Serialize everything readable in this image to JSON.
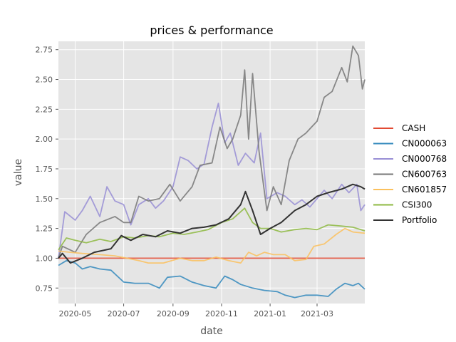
{
  "chart_data": {
    "type": "line",
    "title": "prices & performance",
    "xlabel": "date",
    "ylabel": "value",
    "x_axis_type": "date",
    "xlim": [
      "2020-04-10",
      "2021-04-30"
    ],
    "ylim": [
      0.62,
      2.82
    ],
    "x_ticks": [
      "2020-05",
      "2020-07",
      "2020-09",
      "2020-11",
      "2021-01",
      "2021-03"
    ],
    "x_tick_dates": [
      "2020-05-01",
      "2020-07-01",
      "2020-09-01",
      "2020-11-01",
      "2021-01-01",
      "2021-03-01"
    ],
    "y_ticks": [
      0.75,
      1.0,
      1.25,
      1.5,
      1.75,
      2.0,
      2.25,
      2.5,
      2.75
    ],
    "y_tick_labels": [
      "0.75",
      "1.00",
      "1.25",
      "1.50",
      "1.75",
      "2.00",
      "2.25",
      "2.50",
      "2.75"
    ],
    "grid": true,
    "background": "#E5E5E5",
    "legend_position": "outside-right",
    "series": [
      {
        "name": "CASH",
        "color": "#E24A33",
        "points": [
          [
            "2020-04-10",
            1.0
          ],
          [
            "2021-04-30",
            1.0
          ]
        ]
      },
      {
        "name": "CN000063",
        "color": "#348ABD",
        "points": [
          [
            "2020-04-10",
            0.94
          ],
          [
            "2020-04-20",
            0.98
          ],
          [
            "2020-05-01",
            0.96
          ],
          [
            "2020-05-10",
            0.91
          ],
          [
            "2020-05-20",
            0.93
          ],
          [
            "2020-06-01",
            0.91
          ],
          [
            "2020-06-15",
            0.9
          ],
          [
            "2020-07-01",
            0.8
          ],
          [
            "2020-07-15",
            0.79
          ],
          [
            "2020-08-01",
            0.79
          ],
          [
            "2020-08-15",
            0.75
          ],
          [
            "2020-08-25",
            0.84
          ],
          [
            "2020-09-10",
            0.85
          ],
          [
            "2020-09-25",
            0.8
          ],
          [
            "2020-10-10",
            0.77
          ],
          [
            "2020-10-25",
            0.75
          ],
          [
            "2020-11-05",
            0.85
          ],
          [
            "2020-11-15",
            0.82
          ],
          [
            "2020-11-25",
            0.78
          ],
          [
            "2020-12-10",
            0.75
          ],
          [
            "2020-12-25",
            0.73
          ],
          [
            "2021-01-10",
            0.72
          ],
          [
            "2021-01-20",
            0.69
          ],
          [
            "2021-02-01",
            0.67
          ],
          [
            "2021-02-15",
            0.69
          ],
          [
            "2021-03-01",
            0.69
          ],
          [
            "2021-03-15",
            0.68
          ],
          [
            "2021-03-25",
            0.74
          ],
          [
            "2021-04-05",
            0.79
          ],
          [
            "2021-04-15",
            0.77
          ],
          [
            "2021-04-22",
            0.79
          ],
          [
            "2021-04-30",
            0.74
          ]
        ]
      },
      {
        "name": "CN000768",
        "color": "#988ED5",
        "points": [
          [
            "2020-04-10",
            1.0
          ],
          [
            "2020-04-18",
            1.39
          ],
          [
            "2020-05-01",
            1.32
          ],
          [
            "2020-05-10",
            1.4
          ],
          [
            "2020-05-20",
            1.52
          ],
          [
            "2020-06-01",
            1.35
          ],
          [
            "2020-06-10",
            1.6
          ],
          [
            "2020-06-20",
            1.48
          ],
          [
            "2020-07-01",
            1.45
          ],
          [
            "2020-07-10",
            1.28
          ],
          [
            "2020-07-20",
            1.45
          ],
          [
            "2020-08-01",
            1.5
          ],
          [
            "2020-08-10",
            1.42
          ],
          [
            "2020-08-20",
            1.48
          ],
          [
            "2020-09-01",
            1.6
          ],
          [
            "2020-09-10",
            1.85
          ],
          [
            "2020-09-20",
            1.82
          ],
          [
            "2020-10-01",
            1.75
          ],
          [
            "2020-10-10",
            1.79
          ],
          [
            "2020-10-20",
            2.1
          ],
          [
            "2020-10-28",
            2.3
          ],
          [
            "2020-11-05",
            1.97
          ],
          [
            "2020-11-12",
            2.05
          ],
          [
            "2020-11-22",
            1.78
          ],
          [
            "2020-12-01",
            1.88
          ],
          [
            "2020-12-12",
            1.8
          ],
          [
            "2020-12-20",
            2.05
          ],
          [
            "2020-12-28",
            1.5
          ],
          [
            "2021-01-10",
            1.55
          ],
          [
            "2021-01-20",
            1.52
          ],
          [
            "2021-02-01",
            1.45
          ],
          [
            "2021-02-10",
            1.49
          ],
          [
            "2021-02-20",
            1.43
          ],
          [
            "2021-03-01",
            1.5
          ],
          [
            "2021-03-10",
            1.57
          ],
          [
            "2021-03-20",
            1.5
          ],
          [
            "2021-04-01",
            1.62
          ],
          [
            "2021-04-10",
            1.55
          ],
          [
            "2021-04-20",
            1.62
          ],
          [
            "2021-04-25",
            1.4
          ],
          [
            "2021-04-30",
            1.45
          ]
        ]
      },
      {
        "name": "CN600763",
        "color": "#777777",
        "points": [
          [
            "2020-04-10",
            1.0
          ],
          [
            "2020-04-15",
            1.1
          ],
          [
            "2020-05-01",
            1.05
          ],
          [
            "2020-05-15",
            1.2
          ],
          [
            "2020-06-01",
            1.3
          ],
          [
            "2020-06-20",
            1.35
          ],
          [
            "2020-07-01",
            1.3
          ],
          [
            "2020-07-10",
            1.3
          ],
          [
            "2020-07-20",
            1.52
          ],
          [
            "2020-08-01",
            1.48
          ],
          [
            "2020-08-15",
            1.5
          ],
          [
            "2020-08-28",
            1.62
          ],
          [
            "2020-09-10",
            1.48
          ],
          [
            "2020-09-25",
            1.6
          ],
          [
            "2020-10-05",
            1.78
          ],
          [
            "2020-10-20",
            1.8
          ],
          [
            "2020-10-30",
            2.1
          ],
          [
            "2020-11-08",
            1.92
          ],
          [
            "2020-11-15",
            2.0
          ],
          [
            "2020-11-25",
            2.2
          ],
          [
            "2020-11-30",
            2.58
          ],
          [
            "2020-12-05",
            2.0
          ],
          [
            "2020-12-10",
            2.55
          ],
          [
            "2020-12-18",
            1.9
          ],
          [
            "2020-12-28",
            1.4
          ],
          [
            "2021-01-05",
            1.6
          ],
          [
            "2021-01-15",
            1.45
          ],
          [
            "2021-01-25",
            1.82
          ],
          [
            "2021-02-05",
            2.0
          ],
          [
            "2021-02-15",
            2.05
          ],
          [
            "2021-02-22",
            2.1
          ],
          [
            "2021-03-01",
            2.15
          ],
          [
            "2021-03-10",
            2.35
          ],
          [
            "2021-03-20",
            2.4
          ],
          [
            "2021-04-01",
            2.6
          ],
          [
            "2021-04-08",
            2.48
          ],
          [
            "2021-04-15",
            2.78
          ],
          [
            "2021-04-22",
            2.7
          ],
          [
            "2021-04-27",
            2.42
          ],
          [
            "2021-04-30",
            2.5
          ]
        ]
      },
      {
        "name": "CN601857",
        "color": "#FBC15E",
        "points": [
          [
            "2020-04-10",
            1.06
          ],
          [
            "2020-04-25",
            1.05
          ],
          [
            "2020-05-10",
            1.04
          ],
          [
            "2020-06-01",
            1.03
          ],
          [
            "2020-06-20",
            1.02
          ],
          [
            "2020-07-05",
            1.0
          ],
          [
            "2020-07-20",
            0.98
          ],
          [
            "2020-08-01",
            0.96
          ],
          [
            "2020-08-20",
            0.96
          ],
          [
            "2020-09-10",
            1.0
          ],
          [
            "2020-09-25",
            0.98
          ],
          [
            "2020-10-10",
            0.98
          ],
          [
            "2020-10-25",
            1.01
          ],
          [
            "2020-11-10",
            0.98
          ],
          [
            "2020-11-25",
            0.96
          ],
          [
            "2020-12-05",
            1.05
          ],
          [
            "2020-12-15",
            1.02
          ],
          [
            "2020-12-25",
            1.05
          ],
          [
            "2021-01-05",
            1.03
          ],
          [
            "2021-01-20",
            1.03
          ],
          [
            "2021-02-01",
            0.98
          ],
          [
            "2021-02-15",
            0.99
          ],
          [
            "2021-02-25",
            1.1
          ],
          [
            "2021-03-10",
            1.12
          ],
          [
            "2021-03-25",
            1.2
          ],
          [
            "2021-04-05",
            1.25
          ],
          [
            "2021-04-15",
            1.22
          ],
          [
            "2021-04-30",
            1.21
          ]
        ]
      },
      {
        "name": "CSI300",
        "color": "#8EBA42",
        "points": [
          [
            "2020-04-10",
            1.07
          ],
          [
            "2020-04-20",
            1.17
          ],
          [
            "2020-05-01",
            1.15
          ],
          [
            "2020-05-15",
            1.13
          ],
          [
            "2020-06-01",
            1.16
          ],
          [
            "2020-06-15",
            1.14
          ],
          [
            "2020-07-01",
            1.18
          ],
          [
            "2020-07-15",
            1.17
          ],
          [
            "2020-08-01",
            1.19
          ],
          [
            "2020-08-15",
            1.18
          ],
          [
            "2020-09-01",
            1.21
          ],
          [
            "2020-09-15",
            1.2
          ],
          [
            "2020-10-01",
            1.22
          ],
          [
            "2020-10-15",
            1.24
          ],
          [
            "2020-11-01",
            1.3
          ],
          [
            "2020-11-15",
            1.33
          ],
          [
            "2020-11-30",
            1.42
          ],
          [
            "2020-12-10",
            1.3
          ],
          [
            "2020-12-20",
            1.25
          ],
          [
            "2021-01-01",
            1.25
          ],
          [
            "2021-01-15",
            1.22
          ],
          [
            "2021-02-01",
            1.24
          ],
          [
            "2021-02-15",
            1.25
          ],
          [
            "2021-03-01",
            1.24
          ],
          [
            "2021-03-15",
            1.28
          ],
          [
            "2021-04-01",
            1.27
          ],
          [
            "2021-04-15",
            1.26
          ],
          [
            "2021-04-30",
            1.23
          ]
        ]
      },
      {
        "name": "Portfolio",
        "color": "#333333",
        "points": [
          [
            "2020-04-10",
            1.0
          ],
          [
            "2020-04-15",
            1.04
          ],
          [
            "2020-04-25",
            0.96
          ],
          [
            "2020-05-10",
            1.0
          ],
          [
            "2020-05-25",
            1.05
          ],
          [
            "2020-06-15",
            1.08
          ],
          [
            "2020-06-28",
            1.19
          ],
          [
            "2020-07-10",
            1.15
          ],
          [
            "2020-07-25",
            1.2
          ],
          [
            "2020-08-10",
            1.18
          ],
          [
            "2020-08-25",
            1.23
          ],
          [
            "2020-09-10",
            1.21
          ],
          [
            "2020-09-25",
            1.25
          ],
          [
            "2020-10-10",
            1.26
          ],
          [
            "2020-10-25",
            1.28
          ],
          [
            "2020-11-10",
            1.33
          ],
          [
            "2020-11-25",
            1.45
          ],
          [
            "2020-12-01",
            1.56
          ],
          [
            "2020-12-10",
            1.4
          ],
          [
            "2020-12-20",
            1.2
          ],
          [
            "2021-01-01",
            1.25
          ],
          [
            "2021-01-15",
            1.3
          ],
          [
            "2021-02-01",
            1.4
          ],
          [
            "2021-02-15",
            1.45
          ],
          [
            "2021-03-01",
            1.52
          ],
          [
            "2021-03-15",
            1.55
          ],
          [
            "2021-04-01",
            1.58
          ],
          [
            "2021-04-15",
            1.62
          ],
          [
            "2021-04-25",
            1.6
          ],
          [
            "2021-04-30",
            1.58
          ]
        ]
      }
    ]
  }
}
